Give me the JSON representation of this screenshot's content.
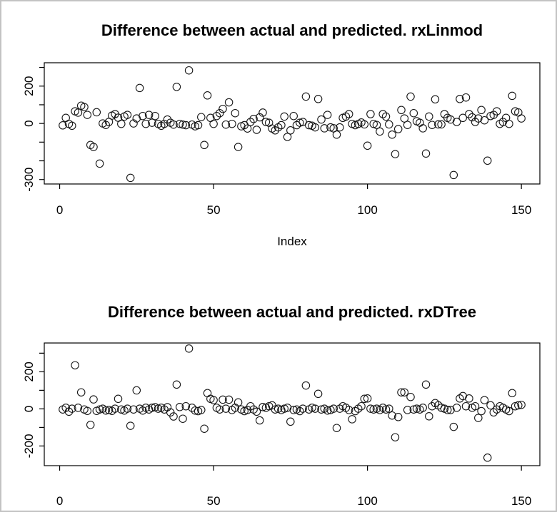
{
  "figure": {
    "background": "#ffffff",
    "border_color": "#c3c3c3",
    "point_color": "#141414",
    "text_color": "#000000"
  },
  "chart_data": [
    {
      "type": "scatter",
      "title": "Difference between actual and predicted. rxLinmod",
      "xlabel": "Index",
      "ylabel": "",
      "marker": "open-circle",
      "grid": false,
      "legend": null,
      "x_mode": "index 1-150",
      "xlim": [
        -5,
        156
      ],
      "ylim": [
        -324,
        325
      ],
      "xticks": [
        0,
        50,
        100,
        150
      ],
      "xtick_labels": [
        "0",
        "50",
        "100",
        "150"
      ],
      "yticks": [
        300,
        200,
        100,
        0,
        -100,
        -200,
        -300
      ],
      "ytick_labels": [
        "",
        "200",
        "",
        "0",
        "",
        "",
        "-300"
      ],
      "values": [
        -10,
        30,
        -2,
        -12,
        65,
        58,
        95,
        88,
        46,
        -115,
        -126,
        60,
        -215,
        0,
        -8,
        8,
        42,
        50,
        31,
        -2,
        37,
        46,
        -291,
        0,
        27,
        190,
        40,
        -2,
        46,
        4,
        40,
        -2,
        -12,
        -2,
        21,
        4,
        -6,
        196,
        -2,
        -6,
        -9,
        284,
        -6,
        -15,
        -9,
        34,
        -115,
        150,
        30,
        -2,
        40,
        55,
        78,
        -6,
        113,
        -2,
        55,
        -126,
        -15,
        -9,
        -27,
        8,
        24,
        -34,
        33,
        58,
        8,
        4,
        -27,
        -37,
        -21,
        -9,
        37,
        -72,
        -37,
        40,
        -9,
        4,
        8,
        144,
        -9,
        -12,
        -21,
        131,
        21,
        -26,
        46,
        -21,
        -26,
        -60,
        -21,
        30,
        37,
        50,
        -2,
        -9,
        -2,
        5,
        -5,
        -119,
        50,
        -2,
        -8,
        -43,
        50,
        37,
        -5,
        -60,
        -164,
        -30,
        72,
        27,
        -8,
        144,
        55,
        12,
        4,
        -26,
        -161,
        37,
        -8,
        129,
        -5,
        -5,
        50,
        30,
        21,
        -276,
        8,
        131,
        30,
        139,
        50,
        33,
        8,
        27,
        72,
        17,
        -199,
        40,
        46,
        65,
        -2,
        8,
        30,
        -2,
        148,
        65,
        59,
        27
      ]
    },
    {
      "type": "scatter",
      "title": "Difference between actual and predicted. rxDTree",
      "xlabel": "",
      "ylabel": "",
      "marker": "open-circle",
      "grid": false,
      "legend": null,
      "x_mode": "index 1-150",
      "xlim": [
        -5,
        156
      ],
      "ylim": [
        -306,
        355
      ],
      "xticks": [
        0,
        50,
        100,
        150
      ],
      "xtick_labels": [
        "0",
        "50",
        "100",
        "150"
      ],
      "yticks": [
        300,
        200,
        100,
        0,
        -100,
        -200
      ],
      "ytick_labels": [
        "",
        "200",
        "",
        "0",
        "",
        "-200"
      ],
      "values": [
        -3,
        6,
        -15,
        1,
        235,
        6,
        89,
        -3,
        -11,
        -86,
        51,
        -11,
        -3,
        1,
        -9,
        -6,
        -11,
        1,
        54,
        -3,
        -9,
        1,
        -91,
        -3,
        100,
        1,
        -9,
        6,
        -3,
        6,
        9,
        1,
        6,
        -3,
        9,
        -19,
        -41,
        131,
        10,
        -53,
        14,
        325,
        6,
        -9,
        -12,
        -6,
        -107,
        85,
        54,
        47,
        6,
        -3,
        50,
        1,
        50,
        -6,
        6,
        35,
        -3,
        -12,
        -6,
        14,
        -3,
        -15,
        -62,
        10,
        6,
        14,
        19,
        -3,
        1,
        -6,
        1,
        6,
        -69,
        -6,
        -3,
        -12,
        1,
        126,
        -3,
        6,
        1,
        81,
        -3,
        1,
        -9,
        -6,
        1,
        -103,
        1,
        14,
        6,
        -6,
        -56,
        -12,
        1,
        14,
        54,
        56,
        1,
        -3,
        1,
        -6,
        6,
        -3,
        1,
        -36,
        -153,
        -44,
        89,
        89,
        -6,
        64,
        -3,
        1,
        -3,
        6,
        131,
        -40,
        14,
        31,
        19,
        6,
        1,
        -6,
        -6,
        -97,
        6,
        56,
        69,
        14,
        56,
        6,
        14,
        -49,
        -12,
        47,
        -263,
        19,
        -19,
        -3,
        14,
        6,
        -3,
        -12,
        85,
        14,
        19,
        22
      ]
    }
  ]
}
